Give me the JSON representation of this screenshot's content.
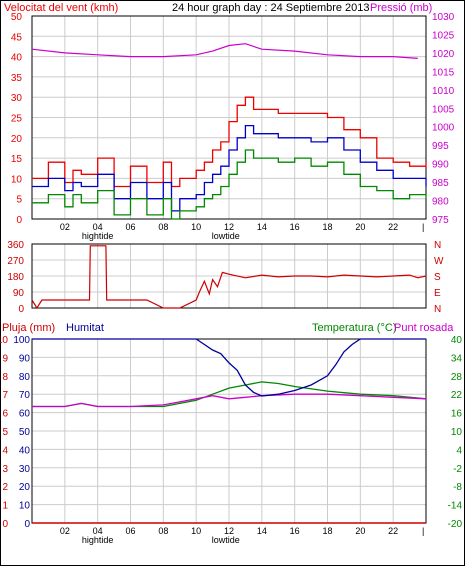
{
  "colors": {
    "wind_gust": "#ee0000",
    "wind_avg": "#0000cc",
    "wind_low": "#008800",
    "pressure": "#cc00cc",
    "direction": "#cc0000",
    "rain": "#cc0000",
    "humidity": "#000099",
    "temperature": "#008800",
    "dewpoint": "#cc00cc",
    "grid": "#cccccc",
    "frame": "#000000"
  },
  "chart_data": [
    {
      "type": "line",
      "panel": "wind",
      "title": "24 hour graph day : 24 Septiembre 2013",
      "ylabel_left": "Velocitat del vent (kmh)",
      "ylabel_right": "Pressió (mb)",
      "ylim_left": [
        0,
        50
      ],
      "ylim_right": [
        975,
        1030
      ],
      "yticks_left": [
        "50",
        "45",
        "40",
        "35",
        "30",
        "25",
        "20",
        "15",
        "10",
        "5",
        "0"
      ],
      "yticks_right": [
        "1030",
        "1025",
        "1020",
        "1015",
        "1010",
        "1005",
        "1000",
        "995",
        "990",
        "985",
        "980",
        "975"
      ],
      "xticks": [
        "02",
        "04",
        "06",
        "08",
        "10",
        "12",
        "14",
        "16",
        "18",
        "20",
        "22"
      ],
      "tide_labels": [
        {
          "label": "hightide",
          "hour": 4
        },
        {
          "label": "lowtide",
          "hour": 11.8
        }
      ],
      "xlim_hours": [
        0,
        24
      ],
      "grid": true,
      "series": [
        {
          "key": "gust",
          "hours": [
            0,
            1,
            2,
            2.5,
            3,
            4,
            5,
            6,
            7,
            8,
            8.5,
            9,
            10,
            10.5,
            11,
            11.5,
            12,
            12.5,
            13,
            13.5,
            14,
            15,
            16,
            17,
            18,
            19,
            20,
            21,
            22,
            23,
            24
          ],
          "values": [
            10,
            14,
            9,
            12,
            11,
            15,
            8,
            13,
            9,
            14,
            8,
            10,
            12,
            14,
            17,
            19,
            24,
            28,
            30,
            27,
            27,
            26,
            26,
            26,
            25,
            22,
            20,
            15,
            14,
            13,
            14
          ]
        },
        {
          "key": "avg",
          "hours": [
            0,
            1,
            2,
            2.5,
            3,
            4,
            5,
            6,
            7,
            8,
            8.5,
            9,
            10,
            10.5,
            11,
            11.5,
            12,
            12.5,
            13,
            13.5,
            14,
            15,
            16,
            17,
            18,
            19,
            20,
            21,
            22,
            23,
            24
          ],
          "values": [
            8,
            10,
            7,
            9,
            8,
            11,
            5,
            9,
            5,
            9,
            2,
            5,
            6,
            9,
            11,
            13,
            17,
            20,
            23,
            21,
            21,
            20,
            20,
            19,
            20,
            17,
            14,
            12,
            10,
            10,
            8
          ]
        },
        {
          "key": "low",
          "hours": [
            0,
            1,
            2,
            2.5,
            3,
            4,
            5,
            6,
            7,
            8,
            8.5,
            9,
            10,
            10.5,
            11,
            11.5,
            12,
            12.5,
            13,
            13.5,
            14,
            15,
            16,
            17,
            18,
            19,
            20,
            21,
            22,
            23,
            24
          ],
          "values": [
            4,
            6,
            3,
            6,
            4,
            7,
            1,
            5,
            1,
            5,
            0,
            2,
            3,
            5,
            6,
            8,
            11,
            14,
            17,
            15,
            15,
            14,
            15,
            13,
            14,
            11,
            8,
            7,
            5,
            6,
            5
          ]
        },
        {
          "key": "pressure",
          "axis": "right",
          "hours": [
            0,
            2,
            4,
            6,
            8,
            10,
            11,
            12,
            13,
            14,
            16,
            18,
            20,
            22,
            23.5
          ],
          "values": [
            1021,
            1020,
            1019.5,
            1019,
            1019,
            1019.5,
            1020.5,
            1022,
            1022.5,
            1021,
            1020.5,
            1019.5,
            1019,
            1019,
            1018.5
          ]
        }
      ]
    },
    {
      "type": "line",
      "panel": "direction",
      "ylim": [
        0,
        360
      ],
      "yticks_left": [
        "360",
        "270",
        "180",
        "90",
        "0"
      ],
      "yticks_right": [
        "N",
        "W",
        "S",
        "E",
        "N"
      ],
      "grid": true,
      "series": [
        {
          "key": "direction",
          "hours": [
            0,
            0.3,
            0.6,
            1,
            2,
            3,
            3.5,
            3.55,
            4.5,
            4.55,
            5,
            6,
            7,
            8,
            9,
            10,
            10.2,
            10.5,
            10.8,
            11,
            11.3,
            11.6,
            12,
            13,
            14,
            15,
            16,
            17,
            18,
            19,
            20,
            21,
            22,
            23,
            23.5,
            24
          ],
          "values": [
            45,
            0,
            45,
            45,
            45,
            45,
            45,
            350,
            350,
            45,
            45,
            45,
            45,
            0,
            0,
            45,
            90,
            150,
            80,
            160,
            120,
            200,
            190,
            170,
            185,
            175,
            180,
            180,
            175,
            185,
            180,
            175,
            180,
            185,
            170,
            180
          ]
        }
      ]
    },
    {
      "type": "line",
      "panel": "humidity",
      "ylabel_left_1": "Pluja (mm)",
      "ylabel_left_2": "Humitat",
      "ylabel_right_1": "Temperatura (°C)",
      "ylabel_right_2": "Punt rosada",
      "ylim_rain": [
        0,
        10
      ],
      "ylim_humidity": [
        0,
        100
      ],
      "ylim_temp": [
        -20,
        40
      ],
      "yticks_rain": [
        "10",
        "9",
        "8",
        "7",
        "6",
        "5",
        "4",
        "3",
        "2",
        "1",
        "0"
      ],
      "yticks_humidity": [
        "100",
        "90",
        "80",
        "70",
        "60",
        "50",
        "40",
        "30",
        "20",
        "10",
        "0"
      ],
      "yticks_temp": [
        "40",
        "34",
        "28",
        "22",
        "16",
        "10",
        "4",
        "-2",
        "-8",
        "-14",
        "-20"
      ],
      "xticks": [
        "02",
        "04",
        "06",
        "08",
        "10",
        "12",
        "14",
        "16",
        "18",
        "20",
        "22"
      ],
      "tide_labels": [
        {
          "label": "hightide",
          "hour": 4
        },
        {
          "label": "lowtide",
          "hour": 11.8
        }
      ],
      "grid": true,
      "series": [
        {
          "key": "rain",
          "hours": [
            0,
            24
          ],
          "values": [
            0,
            0
          ]
        },
        {
          "key": "humidity",
          "hours": [
            0,
            10,
            10.5,
            11,
            11.5,
            12,
            12.5,
            13,
            13.5,
            14,
            15,
            16,
            17,
            18,
            18.5,
            19,
            19.5,
            20,
            22,
            24
          ],
          "values": [
            100,
            100,
            97,
            94,
            92,
            87,
            83,
            75,
            71,
            69,
            70,
            72,
            75,
            80,
            86,
            93,
            97,
            100,
            100,
            100
          ]
        },
        {
          "key": "temperature",
          "hours": [
            0,
            2,
            3,
            4,
            6,
            8,
            9,
            10,
            11,
            12,
            13,
            14,
            15,
            16,
            18,
            20,
            22,
            24
          ],
          "values": [
            18,
            18,
            19,
            18,
            18,
            18,
            19,
            20,
            22,
            24,
            25,
            26,
            25.5,
            24.5,
            23,
            22,
            21.5,
            20.5
          ]
        },
        {
          "key": "dewpoint",
          "hours": [
            0,
            2,
            3,
            4,
            6,
            8,
            9,
            10,
            11,
            12,
            13,
            14,
            16,
            18,
            20,
            22,
            24
          ],
          "values": [
            18,
            18,
            19,
            18,
            18,
            18.5,
            19.5,
            20.5,
            21.5,
            20.5,
            21,
            21.5,
            22,
            22,
            21.5,
            21,
            20.5
          ]
        }
      ]
    }
  ]
}
